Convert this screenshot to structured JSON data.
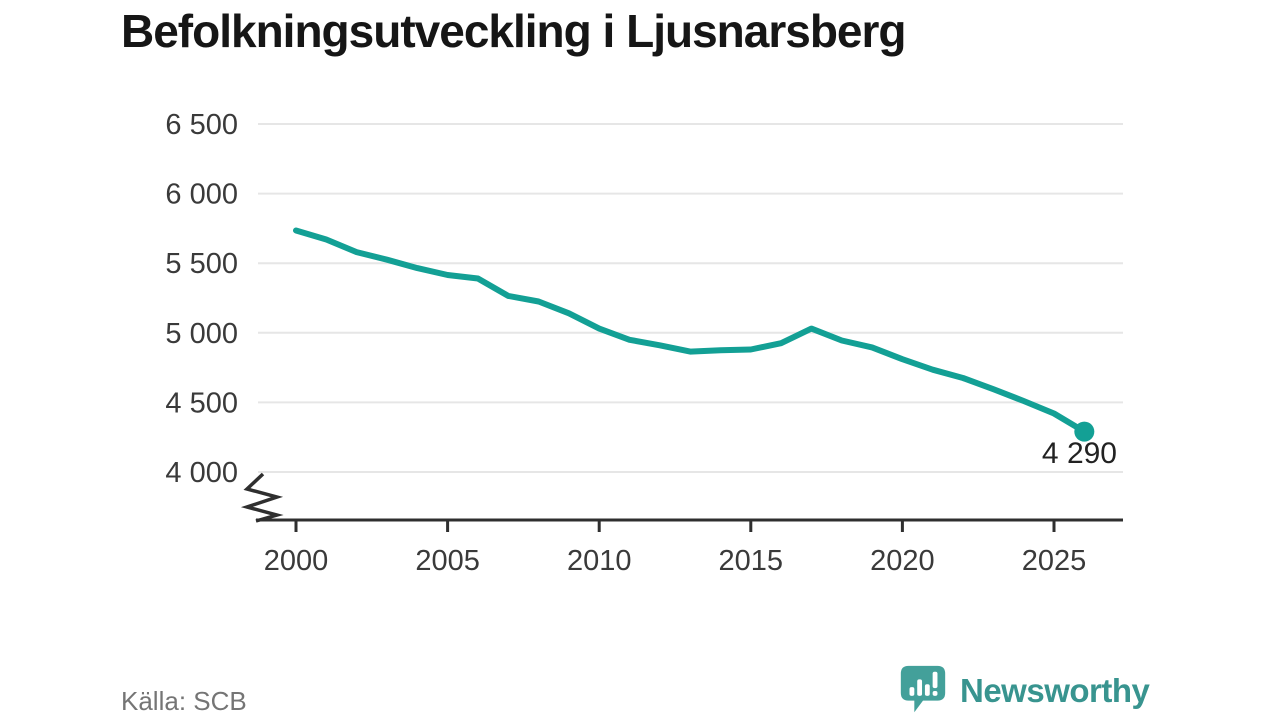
{
  "title": "Befolkningsutveckling i Ljusnarsberg",
  "source": "Källa: SCB",
  "branding": {
    "name": "Newsworthy",
    "icon": "speech-bubble-bar-chart-icon"
  },
  "colors": {
    "line": "#13a095",
    "end_dot": "#13a095",
    "grid": "#e6e6e6",
    "axis": "#2f2f2f",
    "tick_text": "#3a3a3a",
    "title_text": "#161616",
    "label_text": "#222222",
    "source_text": "#757575",
    "brand_teal": "#38948f",
    "brand_bubble": "#3f9f9f",
    "bubble_fill": "#43a09a",
    "background": "#ffffff"
  },
  "chart_data": {
    "type": "line",
    "title": "Befolkningsutveckling i Ljusnarsberg",
    "xlabel": "",
    "ylabel": "",
    "x": [
      2000,
      2001,
      2002,
      2003,
      2004,
      2005,
      2006,
      2007,
      2008,
      2009,
      2010,
      2011,
      2012,
      2013,
      2014,
      2015,
      2016,
      2017,
      2018,
      2019,
      2020,
      2021,
      2022,
      2023,
      2024,
      2025,
      2026
    ],
    "values": [
      5735,
      5670,
      5580,
      5525,
      5465,
      5415,
      5390,
      5265,
      5225,
      5140,
      5030,
      4950,
      4910,
      4865,
      4875,
      4880,
      4925,
      5030,
      4945,
      4895,
      4810,
      4735,
      4675,
      4595,
      4510,
      4420,
      4290
    ],
    "series_name": "Befolkning",
    "yticks": [
      "6 500",
      "6 000",
      "5 500",
      "5 000",
      "4 500",
      "4 000"
    ],
    "ytick_values": [
      6500,
      6000,
      5500,
      5000,
      4500,
      4000
    ],
    "xticks": [
      2000,
      2005,
      2010,
      2015,
      2020,
      2025
    ],
    "xlim": [
      1998.7,
      2027.3
    ],
    "ylim_shown": [
      4000,
      6500
    ],
    "axis_break": true,
    "grid": "horizontal",
    "legend": "none",
    "last_point_label": "4 290",
    "source": "SCB"
  }
}
